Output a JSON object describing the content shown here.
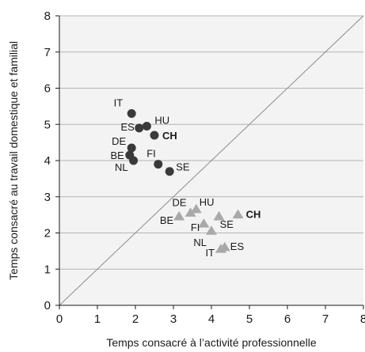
{
  "chart_data": {
    "type": "scatter",
    "xlabel": "Temps consacré à l’activité professionnelle",
    "ylabel": "Temps consacré au travail domestique et familial",
    "xlim": [
      0,
      8
    ],
    "ylim": [
      0,
      8
    ],
    "x_ticks": [
      "0",
      "1",
      "2",
      "3",
      "4",
      "5",
      "6",
      "7",
      "8"
    ],
    "y_ticks": [
      "0",
      "1",
      "2",
      "3",
      "4",
      "5",
      "6",
      "7",
      "8"
    ],
    "grid": "horizontal",
    "reference_line": {
      "from": [
        0,
        0
      ],
      "to": [
        8,
        8
      ]
    },
    "colors": {
      "circles": "#3a3a3a",
      "triangles": "#a9a9a9",
      "grid": "#b3b3b3",
      "plot_bg": "#f3f3f3"
    },
    "series": [
      {
        "marker": "circle",
        "points": [
          {
            "label": "IT",
            "x": 1.9,
            "y": 5.3
          },
          {
            "label": "HU",
            "x": 2.3,
            "y": 4.95
          },
          {
            "label": "ES",
            "x": 2.1,
            "y": 4.9
          },
          {
            "label": "CH",
            "x": 2.5,
            "y": 4.7,
            "bold": true
          },
          {
            "label": "DE",
            "x": 1.9,
            "y": 4.35
          },
          {
            "label": "BE",
            "x": 1.85,
            "y": 4.15
          },
          {
            "label": "NL",
            "x": 1.95,
            "y": 4.0
          },
          {
            "label": "FI",
            "x": 2.6,
            "y": 3.9
          },
          {
            "label": "SE",
            "x": 2.9,
            "y": 3.7
          }
        ]
      },
      {
        "marker": "triangle",
        "points": [
          {
            "label": "DE",
            "x": 3.45,
            "y": 2.55
          },
          {
            "label": "HU",
            "x": 3.6,
            "y": 2.65
          },
          {
            "label": "CH",
            "x": 4.7,
            "y": 2.5,
            "bold": true
          },
          {
            "label": "BE",
            "x": 3.15,
            "y": 2.45
          },
          {
            "label": "FI",
            "x": 3.8,
            "y": 2.25
          },
          {
            "label": "SE",
            "x": 4.2,
            "y": 2.45
          },
          {
            "label": "NL",
            "x": 4.0,
            "y": 2.05
          },
          {
            "label": "IT",
            "x": 4.25,
            "y": 1.55
          },
          {
            "label": "ES",
            "x": 4.35,
            "y": 1.6
          }
        ]
      }
    ]
  }
}
